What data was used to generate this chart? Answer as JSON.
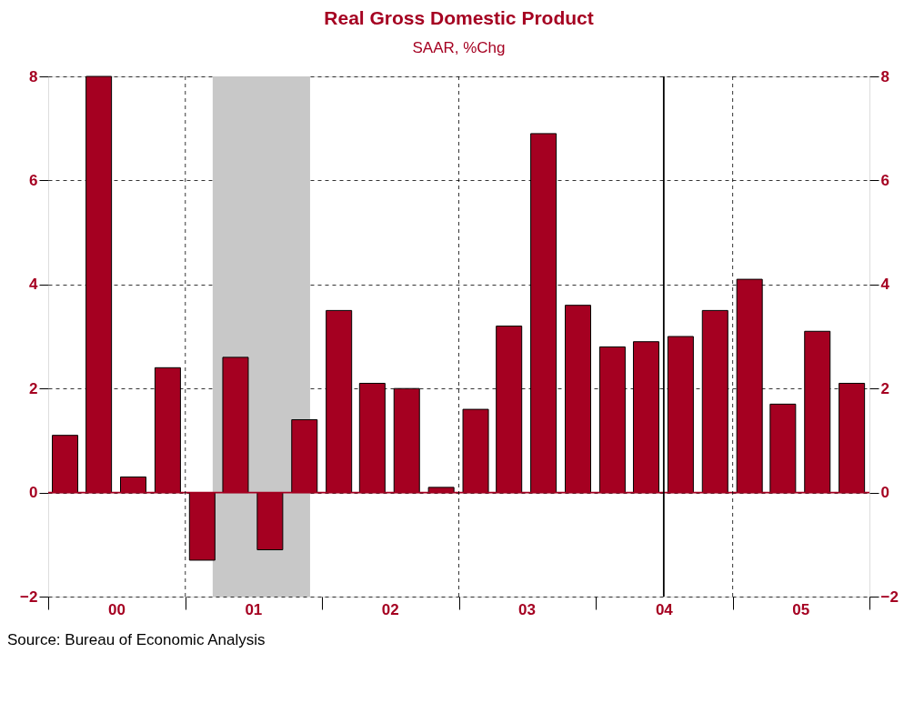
{
  "chart_data": {
    "type": "bar",
    "title": "Real Gross Domestic Product",
    "subtitle": "SAAR, %Chg",
    "x": [
      "2000-02-15",
      "2000-05-15",
      "2000-08-15",
      "2000-11-15",
      "2001-02-15",
      "2001-05-15",
      "2001-08-15",
      "2001-11-15",
      "2002-02-15",
      "2002-05-15",
      "2002-08-15",
      "2002-11-15",
      "2003-02-15",
      "2003-05-15",
      "2003-08-15",
      "2003-11-15",
      "2004-02-15",
      "2004-05-15",
      "2004-08-15",
      "2004-11-15",
      "2005-02-15",
      "2005-05-15",
      "2005-08-15",
      "2005-11-15"
    ],
    "values": [
      1.1,
      8.0,
      0.3,
      2.4,
      -1.3,
      2.6,
      -1.1,
      1.4,
      3.5,
      2.1,
      2.0,
      0.1,
      1.6,
      3.2,
      6.9,
      3.6,
      2.8,
      2.9,
      3.0,
      3.5,
      4.1,
      1.7,
      3.1,
      2.1
    ],
    "color": "#a50021",
    "xlim": [
      "2000-01-01",
      "2006-01-01"
    ],
    "xticks": [
      {
        "value": "2000-01-01",
        "label": null
      },
      {
        "value": "2000-07-01",
        "label": "00"
      },
      {
        "value": "2001-01-01",
        "label": null
      },
      {
        "value": "2001-07-01",
        "label": "01"
      },
      {
        "value": "2002-01-01",
        "label": null
      },
      {
        "value": "2002-07-01",
        "label": "02"
      },
      {
        "value": "2003-01-01",
        "label": null
      },
      {
        "value": "2003-07-01",
        "label": "03"
      },
      {
        "value": "2004-01-01",
        "label": null
      },
      {
        "value": "2004-07-01",
        "label": "04"
      },
      {
        "value": "2005-01-01",
        "label": null
      },
      {
        "value": "2005-07-01",
        "label": "05"
      },
      {
        "value": "2006-01-01",
        "label": null
      }
    ],
    "ylim": [
      -2,
      8
    ],
    "yticks": [
      -2,
      0,
      2,
      4,
      6,
      8
    ],
    "y2lim": [
      -2,
      8
    ],
    "y2ticks": [
      -2,
      0,
      2,
      4,
      6,
      8
    ],
    "grid": "y",
    "ref_lines": [
      {
        "axis": "y",
        "value": 0,
        "color": "#a50021",
        "line_style": "solid"
      },
      {
        "axis": "x",
        "value": "2001-01-01",
        "color": "#000000",
        "line_style": "dashed"
      },
      {
        "axis": "x",
        "value": "2003-01-01",
        "color": "#000000",
        "line_style": "dashed"
      },
      {
        "axis": "x",
        "value": "2005-01-01",
        "color": "#000000",
        "line_style": "dashed"
      },
      {
        "axis": "x",
        "value": "2004-07-01",
        "color": "#000000",
        "line_style": "solid"
      }
    ],
    "bands": [
      {
        "axis": "x",
        "from": "2001-03-15",
        "to": "2001-11-30",
        "color": "#c8c8c8"
      }
    ],
    "annotations": [
      "Source:  Bureau of Economic Analysis"
    ]
  }
}
